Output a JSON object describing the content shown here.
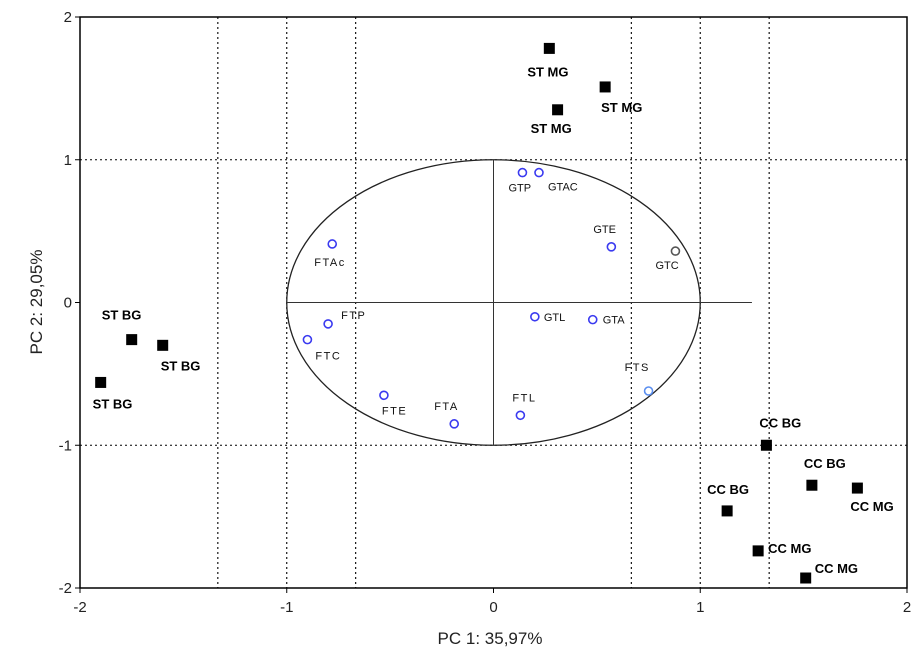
{
  "chart_data": {
    "type": "scatter",
    "xlabel": "PC 1: 35,97%",
    "ylabel": "PC 2: 29,05%",
    "xlim": [
      -2,
      2
    ],
    "ylim": [
      -2,
      2
    ],
    "xticks": [
      "-2",
      "-1",
      "0",
      "1",
      "2"
    ],
    "yticks": [
      "-2",
      "-1",
      "0",
      "1",
      "2"
    ],
    "grid": "dotted",
    "correlation_circle_radius": 1,
    "series": [
      {
        "marker": "filled-square",
        "color": "#000000",
        "points": [
          {
            "x": 0.27,
            "y": 1.78,
            "label": "ST MG"
          },
          {
            "x": 0.54,
            "y": 1.51,
            "label": "ST MG"
          },
          {
            "x": 0.31,
            "y": 1.35,
            "label": "ST MG"
          },
          {
            "x": -1.75,
            "y": -0.26,
            "label": "ST BG"
          },
          {
            "x": -1.6,
            "y": -0.3,
            "label": "ST BG"
          },
          {
            "x": -1.9,
            "y": -0.56,
            "label": "ST BG"
          },
          {
            "x": 1.32,
            "y": -1.0,
            "label": "CC BG"
          },
          {
            "x": 1.54,
            "y": -1.28,
            "label": "CC BG"
          },
          {
            "x": 1.13,
            "y": -1.46,
            "label": "CC BG"
          },
          {
            "x": 1.76,
            "y": -1.3,
            "label": "CC MG"
          },
          {
            "x": 1.28,
            "y": -1.74,
            "label": "CC MG"
          },
          {
            "x": 1.51,
            "y": -1.93,
            "label": "CC MG"
          }
        ]
      },
      {
        "marker": "open-circle",
        "color": "#3a3af0",
        "points": [
          {
            "x": 0.14,
            "y": 0.91,
            "label": "GTP"
          },
          {
            "x": 0.22,
            "y": 0.91,
            "label": "GTAC"
          },
          {
            "x": 0.57,
            "y": 0.39,
            "label": "GTE"
          },
          {
            "x": 0.88,
            "y": 0.36,
            "label": "GTC"
          },
          {
            "x": -0.78,
            "y": 0.41,
            "label": "FTAc"
          },
          {
            "x": -0.8,
            "y": -0.15,
            "label": "FTP"
          },
          {
            "x": -0.9,
            "y": -0.26,
            "label": "FTC"
          },
          {
            "x": 0.2,
            "y": -0.1,
            "label": "GTL"
          },
          {
            "x": 0.48,
            "y": -0.12,
            "label": "GTA"
          },
          {
            "x": 0.75,
            "y": -0.62,
            "label": "FTS"
          },
          {
            "x": -0.53,
            "y": -0.65,
            "label": "FTE"
          },
          {
            "x": -0.19,
            "y": -0.85,
            "label": "FTA"
          },
          {
            "x": 0.13,
            "y": -0.79,
            "label": "FTL"
          }
        ]
      }
    ]
  }
}
